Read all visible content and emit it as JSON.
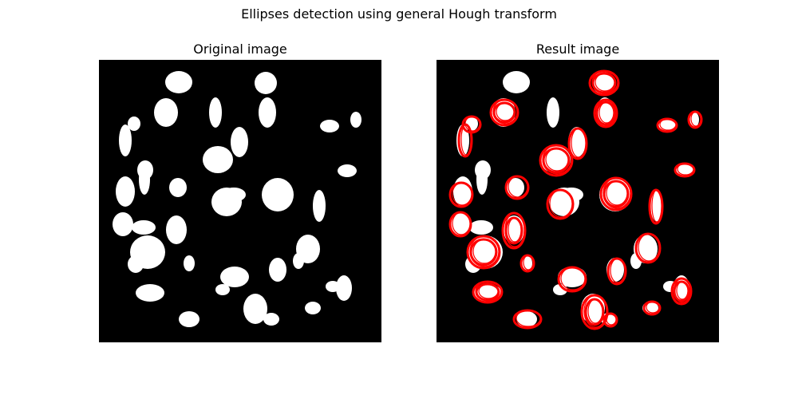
{
  "figure": {
    "title": "Ellipses detection using general Hough transform"
  },
  "panels": {
    "left": {
      "title": "Original image"
    },
    "right": {
      "title": "Result image"
    }
  },
  "colors": {
    "background": "#ffffff",
    "image_background": "#000000",
    "blob": "#ffffff",
    "detection": "#ff0000"
  }
}
